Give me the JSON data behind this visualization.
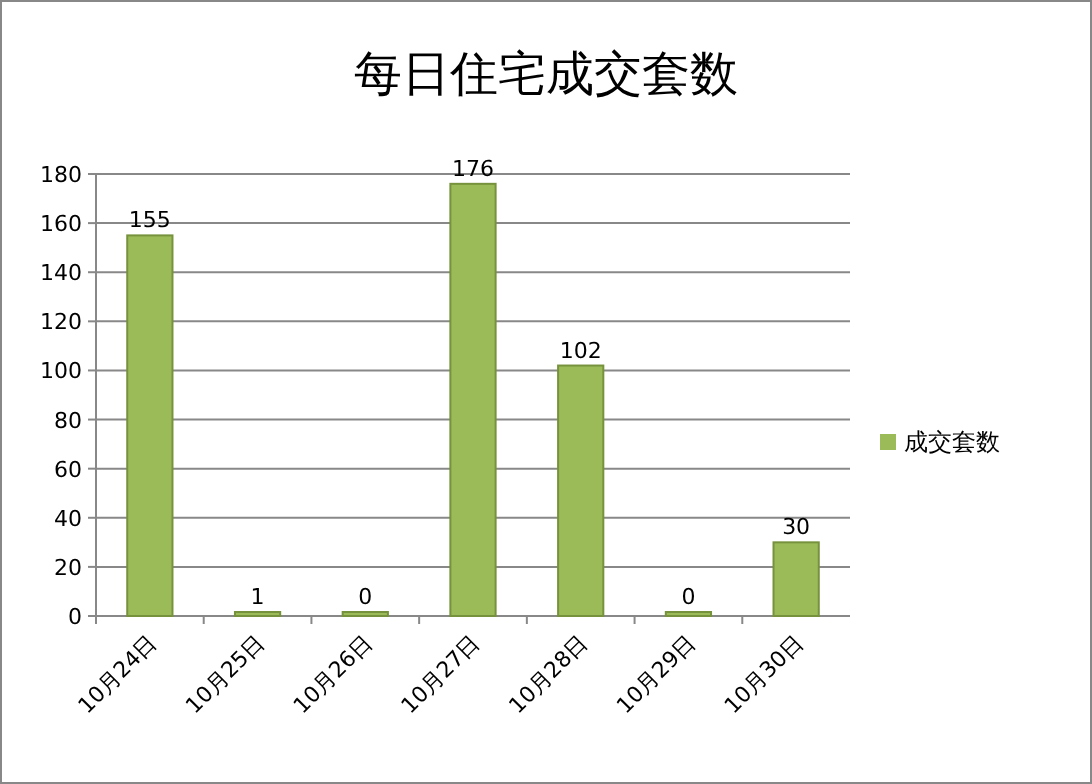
{
  "chart_data": {
    "type": "bar",
    "title": "每日住宅成交套数",
    "categories": [
      "10月24日",
      "10月25日",
      "10月26日",
      "10月27日",
      "10月28日",
      "10月29日",
      "10月30日"
    ],
    "series": [
      {
        "name": "成交套数",
        "color": "#9bbb59",
        "values": [
          155,
          1,
          0,
          176,
          102,
          0,
          30
        ]
      }
    ],
    "ylim": [
      0,
      180
    ],
    "yticks": [
      0,
      20,
      40,
      60,
      80,
      100,
      120,
      140,
      160,
      180
    ],
    "grid": "y",
    "legend": "right",
    "data_labels": true
  }
}
